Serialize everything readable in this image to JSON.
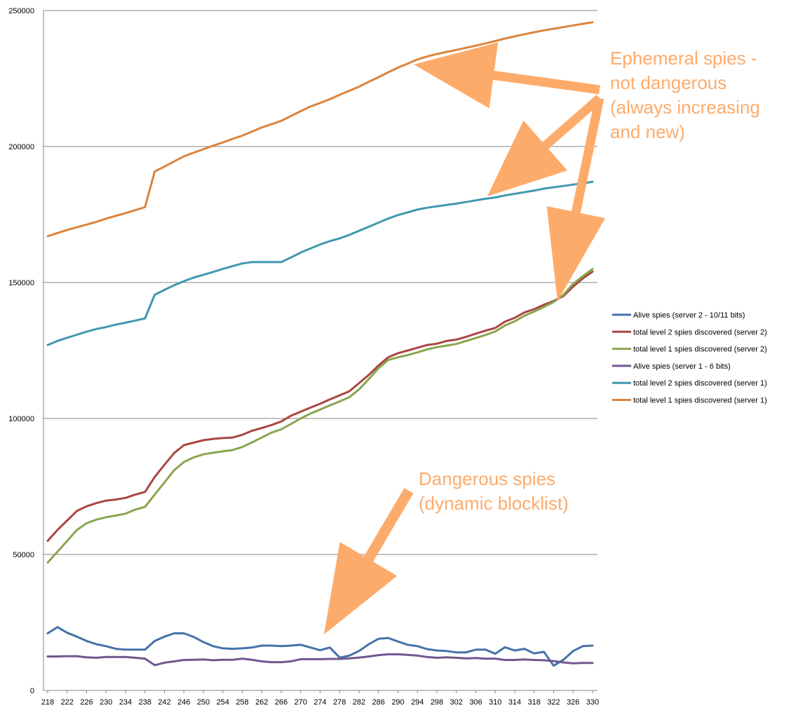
{
  "chart_data": {
    "type": "line",
    "title": "",
    "xlabel": "",
    "ylabel": "",
    "ylim": [
      0,
      250000
    ],
    "yticks": [
      0,
      50000,
      100000,
      150000,
      200000,
      250000
    ],
    "ytick_labels": [
      "0",
      "50000",
      "100000",
      "150000",
      "200000",
      "250000"
    ],
    "xlim": [
      218,
      330
    ],
    "xticks": [
      218,
      222,
      226,
      230,
      234,
      238,
      242,
      246,
      250,
      254,
      258,
      262,
      266,
      270,
      274,
      278,
      282,
      286,
      290,
      294,
      298,
      302,
      306,
      310,
      314,
      318,
      322,
      326,
      330
    ],
    "x": [
      218,
      220,
      222,
      224,
      226,
      228,
      230,
      232,
      234,
      236,
      238,
      240,
      242,
      244,
      246,
      248,
      250,
      252,
      254,
      256,
      258,
      260,
      262,
      264,
      266,
      268,
      270,
      272,
      274,
      276,
      278,
      280,
      282,
      284,
      286,
      288,
      290,
      292,
      294,
      296,
      298,
      300,
      302,
      304,
      306,
      308,
      310,
      312,
      314,
      316,
      318,
      320,
      322,
      324,
      326,
      328,
      330
    ],
    "grid": "horizontal",
    "legend_position": "right",
    "series": [
      {
        "name": "Alive spies (server 2 - 10/11 bits)",
        "color": "#4572a7",
        "values": [
          21000,
          23300,
          21200,
          19800,
          18200,
          17000,
          16300,
          15300,
          15000,
          15000,
          15000,
          18200,
          19800,
          21000,
          21000,
          19700,
          17800,
          16300,
          15500,
          15300,
          15500,
          15800,
          16500,
          16500,
          16300,
          16500,
          16800,
          15800,
          14800,
          15800,
          12100,
          12800,
          14500,
          17000,
          19000,
          19300,
          18000,
          16800,
          16300,
          15200,
          14700,
          14500,
          14000,
          14000,
          15000,
          15000,
          13500,
          15900,
          14700,
          15300,
          13600,
          14200,
          9100,
          11300,
          14500,
          16300,
          16500
        ]
      },
      {
        "name": "total level 2 spies discovered (server 2)",
        "color": "#aa4643",
        "values": [
          55000,
          59000,
          62500,
          66000,
          67700,
          68900,
          69800,
          70200,
          70800,
          72000,
          73000,
          78500,
          83000,
          87300,
          90200,
          91100,
          92000,
          92500,
          92800,
          93000,
          94000,
          95500,
          96500,
          97600,
          98900,
          101000,
          102500,
          104000,
          105400,
          107000,
          108500,
          110000,
          113000,
          116000,
          119500,
          122500,
          124000,
          125000,
          126000,
          127000,
          127500,
          128500,
          129000,
          130000,
          131200,
          132300,
          133300,
          135600,
          137000,
          139000,
          140200,
          141800,
          143200,
          145000,
          148500,
          151500,
          154000
        ]
      },
      {
        "name": "total level 1 spies discovered (server 2)",
        "color": "#89a54e",
        "values": [
          47000,
          51000,
          55000,
          59000,
          61500,
          62800,
          63700,
          64300,
          65000,
          66500,
          67500,
          72000,
          76500,
          81000,
          84000,
          85700,
          86800,
          87400,
          87900,
          88400,
          89500,
          91200,
          93000,
          94800,
          96000,
          98000,
          100000,
          101800,
          103300,
          104800,
          106300,
          107800,
          110700,
          114500,
          118500,
          121500,
          122500,
          123300,
          124300,
          125400,
          126200,
          126800,
          127400,
          128500,
          129600,
          130700,
          132000,
          134200,
          135700,
          137800,
          139300,
          141000,
          142800,
          145500,
          149500,
          152300,
          155000
        ]
      },
      {
        "name": "Alive spies (server 1 - 6 bits)",
        "color": "#71588f",
        "values": [
          12500,
          12500,
          12600,
          12600,
          12200,
          12000,
          12300,
          12300,
          12300,
          12000,
          11700,
          9300,
          10200,
          10700,
          11200,
          11300,
          11400,
          11100,
          11300,
          11300,
          11700,
          11300,
          10700,
          10400,
          10400,
          10700,
          11500,
          11500,
          11500,
          11600,
          11600,
          11800,
          12100,
          12500,
          13000,
          13300,
          13300,
          13100,
          12800,
          12300,
          12000,
          12200,
          12000,
          11800,
          11900,
          11700,
          11700,
          11200,
          11200,
          11400,
          11200,
          11100,
          10800,
          10300,
          10000,
          10100,
          10100
        ]
      },
      {
        "name": "total level 2 spies discovered (server 1)",
        "color": "#4198af",
        "values": [
          127000,
          128500,
          129700,
          130800,
          131900,
          132900,
          133600,
          134500,
          135200,
          136000,
          136800,
          145500,
          147300,
          149000,
          150500,
          151800,
          152800,
          153900,
          155000,
          156000,
          157000,
          157500,
          157500,
          157500,
          157500,
          159200,
          161000,
          162500,
          164000,
          165200,
          166200,
          167500,
          169000,
          170500,
          172000,
          173500,
          174800,
          175800,
          176800,
          177500,
          178000,
          178500,
          179000,
          179600,
          180200,
          180800,
          181300,
          182000,
          182600,
          183200,
          183800,
          184500,
          185000,
          185500,
          186000,
          186500,
          187000
        ]
      },
      {
        "name": "total level 1 spies discovered (server 1)",
        "color": "#db843d",
        "values": [
          167000,
          168200,
          169300,
          170300,
          171300,
          172300,
          173500,
          174500,
          175500,
          176600,
          177700,
          190800,
          192600,
          194500,
          196400,
          197700,
          199000,
          200300,
          201500,
          202800,
          204000,
          205500,
          207000,
          208200,
          209400,
          211200,
          213000,
          214700,
          216000,
          217400,
          219000,
          220500,
          222000,
          223800,
          225500,
          227300,
          229000,
          230500,
          232000,
          233100,
          234000,
          234800,
          235500,
          236300,
          237100,
          237900,
          238800,
          239700,
          240500,
          241300,
          242000,
          242700,
          243300,
          243900,
          244500,
          245100,
          245700
        ]
      }
    ],
    "annotations": [
      {
        "text": "Ephemeral spies - not dangerous (always increasing and new)",
        "lines": [
          "Ephemeral spies -",
          "not dangerous",
          "(always increasing",
          "and new)"
        ],
        "color": "#f79646"
      },
      {
        "text": "Dangerous spies (dynamic blocklist)",
        "lines": [
          "Dangerous spies",
          "(dynamic blocklist)"
        ],
        "color": "#f79646"
      }
    ]
  }
}
